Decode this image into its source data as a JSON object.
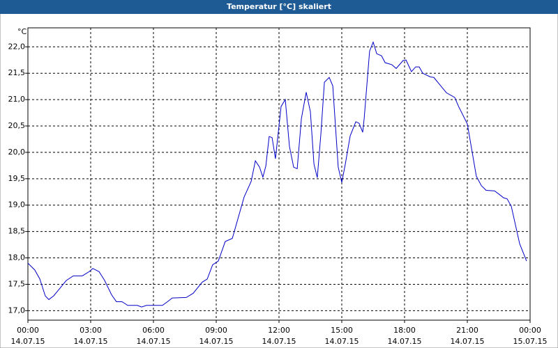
{
  "chart_data": {
    "type": "line",
    "title": "Temperatur [°C] skaliert",
    "y_label": "°C",
    "xlim": [
      0,
      24
    ],
    "ylim": [
      16.82,
      22.36
    ],
    "xticks": [
      {
        "value": 0,
        "label": [
          "00:00",
          "14.07.15"
        ]
      },
      {
        "value": 3,
        "label": [
          "03:00",
          "14.07.15"
        ]
      },
      {
        "value": 6,
        "label": [
          "06:00",
          "14.07.15"
        ]
      },
      {
        "value": 9,
        "label": [
          "09:00",
          "14.07.15"
        ]
      },
      {
        "value": 12,
        "label": [
          "12:00",
          "14.07.15"
        ]
      },
      {
        "value": 15,
        "label": [
          "15:00",
          "14.07.15"
        ]
      },
      {
        "value": 18,
        "label": [
          "18:00",
          "14.07.15"
        ]
      },
      {
        "value": 21,
        "label": [
          "21:00",
          "14.07.15"
        ]
      },
      {
        "value": 24,
        "label": [
          "00:00",
          "15.07.15"
        ]
      }
    ],
    "yticks": [
      {
        "value": 17,
        "label": "17,0"
      },
      {
        "value": 17.5,
        "label": "17,5"
      },
      {
        "value": 18,
        "label": "18,0"
      },
      {
        "value": 18.5,
        "label": "18,5"
      },
      {
        "value": 19,
        "label": "19,0"
      },
      {
        "value": 19.5,
        "label": "19,5"
      },
      {
        "value": 20,
        "label": "20,0"
      },
      {
        "value": 20.5,
        "label": "20,5"
      },
      {
        "value": 21,
        "label": "21,0"
      },
      {
        "value": 21.5,
        "label": "21,5"
      },
      {
        "value": 22,
        "label": "22,0"
      }
    ],
    "grid": true,
    "x": [
      0,
      0.33,
      0.57,
      0.83,
      1.0,
      1.23,
      1.5,
      1.83,
      2.17,
      2.6,
      2.93,
      3.1,
      3.4,
      3.67,
      4.0,
      4.23,
      4.5,
      4.77,
      5.23,
      5.43,
      5.67,
      6.43,
      6.67,
      6.9,
      7.57,
      7.9,
      8.33,
      8.57,
      8.83,
      9.1,
      9.43,
      9.77,
      10.33,
      10.67,
      10.87,
      11.07,
      11.23,
      11.37,
      11.53,
      11.67,
      11.83,
      12.1,
      12.3,
      12.5,
      12.7,
      12.87,
      13.07,
      13.3,
      13.5,
      13.67,
      13.83,
      14.0,
      14.17,
      14.4,
      14.57,
      14.83,
      15.0,
      15.17,
      15.4,
      15.67,
      15.83,
      16.0,
      16.07,
      16.33,
      16.5,
      16.67,
      16.9,
      17.07,
      17.4,
      17.6,
      17.93,
      18.07,
      18.33,
      18.53,
      18.7,
      18.87,
      19.23,
      19.4,
      20.0,
      20.4,
      20.57,
      21.0,
      21.43,
      21.67,
      21.9,
      22.3,
      22.57,
      22.73,
      22.9,
      23.1,
      23.5,
      23.83
    ],
    "series": [
      {
        "color": "#0000c8",
        "values": [
          17.9,
          17.77,
          17.6,
          17.28,
          17.21,
          17.28,
          17.41,
          17.57,
          17.66,
          17.66,
          17.74,
          17.8,
          17.74,
          17.57,
          17.3,
          17.17,
          17.17,
          17.1,
          17.1,
          17.07,
          17.1,
          17.1,
          17.17,
          17.24,
          17.25,
          17.33,
          17.54,
          17.6,
          17.87,
          17.94,
          18.31,
          18.37,
          19.15,
          19.45,
          19.84,
          19.72,
          19.53,
          19.74,
          20.3,
          20.28,
          19.88,
          20.87,
          21.0,
          20.11,
          19.72,
          19.69,
          20.64,
          21.14,
          20.77,
          19.78,
          19.52,
          20.34,
          21.33,
          21.42,
          21.26,
          19.72,
          19.43,
          19.78,
          20.31,
          20.58,
          20.55,
          20.38,
          20.64,
          21.92,
          22.09,
          21.87,
          21.83,
          21.7,
          21.66,
          21.59,
          21.74,
          21.75,
          21.53,
          21.62,
          21.62,
          21.5,
          21.43,
          21.42,
          21.13,
          21.04,
          20.88,
          20.54,
          19.55,
          19.37,
          19.28,
          19.27,
          19.19,
          19.14,
          19.12,
          18.98,
          18.27,
          17.94
        ]
      }
    ]
  }
}
